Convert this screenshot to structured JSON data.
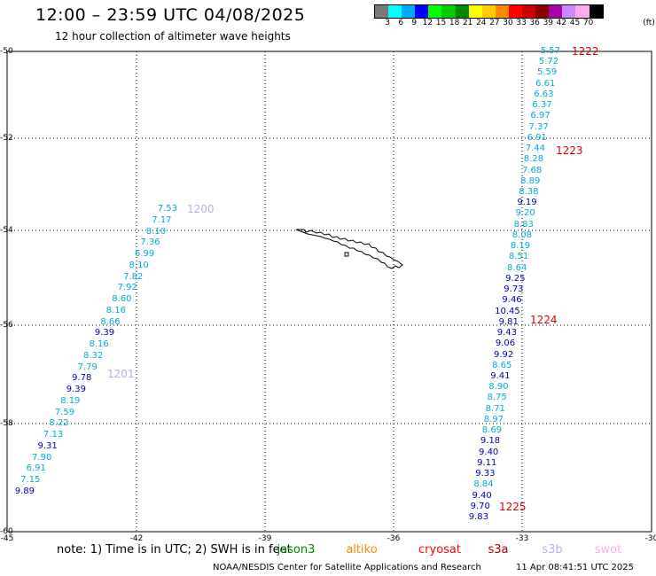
{
  "title": "12:00 – 23:59 UTC 04/08/2025",
  "subtitle": "12 hour collection of altimeter wave heights",
  "legend": {
    "colors": [
      "#7a7a7a",
      "#00ffff",
      "#00aaff",
      "#0000ff",
      "#00ff00",
      "#00cc00",
      "#008800",
      "#ffff00",
      "#ffcc00",
      "#ff8800",
      "#ff0000",
      "#cc0000",
      "#880000",
      "#aa00aa",
      "#cc88ff",
      "#ffaaee",
      "#000000"
    ],
    "ticks": [
      "3",
      "6",
      "9",
      "12",
      "15",
      "18",
      "21",
      "24",
      "27",
      "30",
      "33",
      "36",
      "39",
      "42",
      "45",
      "70"
    ],
    "unit": "(ft)"
  },
  "axes": {
    "lat_labels": [
      "-50",
      "-52",
      "-54",
      "-56",
      "-58",
      "-60"
    ],
    "lon_labels": [
      "-45",
      "-42",
      "-39",
      "-36",
      "-33",
      "-30"
    ]
  },
  "track_east": {
    "color_light": "#00aadd",
    "color_dark": "#0000aa",
    "values": [
      {
        "v": "5.57",
        "c": "light"
      },
      {
        "v": "5.72",
        "c": "light"
      },
      {
        "v": "5.59",
        "c": "light"
      },
      {
        "v": "6.61",
        "c": "light"
      },
      {
        "v": "6.63",
        "c": "light"
      },
      {
        "v": "6.37",
        "c": "light"
      },
      {
        "v": "6.97",
        "c": "light"
      },
      {
        "v": "7.37",
        "c": "light"
      },
      {
        "v": "6.91",
        "c": "light"
      },
      {
        "v": "7.44",
        "c": "light"
      },
      {
        "v": "8.28",
        "c": "light"
      },
      {
        "v": "7.68",
        "c": "light"
      },
      {
        "v": "8.89",
        "c": "light"
      },
      {
        "v": "8.38",
        "c": "light"
      },
      {
        "v": "9.19",
        "c": "dark"
      },
      {
        "v": "9.20",
        "c": "light"
      },
      {
        "v": "8.83",
        "c": "light"
      },
      {
        "v": "8.08",
        "c": "light"
      },
      {
        "v": "8.19",
        "c": "light"
      },
      {
        "v": "8.51",
        "c": "light"
      },
      {
        "v": "8.64",
        "c": "light"
      },
      {
        "v": "9.25",
        "c": "dark"
      },
      {
        "v": "9.73",
        "c": "dark"
      },
      {
        "v": "9.46",
        "c": "dark"
      },
      {
        "v": "10.45",
        "c": "dark"
      },
      {
        "v": "9.81",
        "c": "dark"
      },
      {
        "v": "9.43",
        "c": "dark"
      },
      {
        "v": "9.06",
        "c": "dark"
      },
      {
        "v": "9.92",
        "c": "dark"
      },
      {
        "v": "8.65",
        "c": "light"
      },
      {
        "v": "9.41",
        "c": "dark"
      },
      {
        "v": "8.90",
        "c": "light"
      },
      {
        "v": "8.75",
        "c": "light"
      },
      {
        "v": "8.71",
        "c": "light"
      },
      {
        "v": "8.97",
        "c": "light"
      },
      {
        "v": "8.69",
        "c": "light"
      },
      {
        "v": "9.18",
        "c": "dark"
      },
      {
        "v": "9.40",
        "c": "dark"
      },
      {
        "v": "9.11",
        "c": "dark"
      },
      {
        "v": "9.33",
        "c": "dark"
      },
      {
        "v": "8.84",
        "c": "light"
      },
      {
        "v": "9.40",
        "c": "dark"
      },
      {
        "v": "9.70",
        "c": "dark"
      },
      {
        "v": "9.83",
        "c": "dark"
      }
    ],
    "times": [
      "1222",
      "1223",
      "1224",
      "1225"
    ],
    "time_color": "#dd0000"
  },
  "track_west": {
    "values": [
      {
        "v": "7.53",
        "c": "light"
      },
      {
        "v": "7.17",
        "c": "light"
      },
      {
        "v": "8.10",
        "c": "light"
      },
      {
        "v": "7.36",
        "c": "light"
      },
      {
        "v": "6.99",
        "c": "light"
      },
      {
        "v": "8.10",
        "c": "light"
      },
      {
        "v": "7.82",
        "c": "light"
      },
      {
        "v": "7.92",
        "c": "light"
      },
      {
        "v": "8.60",
        "c": "light"
      },
      {
        "v": "8.16",
        "c": "light"
      },
      {
        "v": "8.66",
        "c": "light"
      },
      {
        "v": "9.39",
        "c": "dark"
      },
      {
        "v": "8.16",
        "c": "light"
      },
      {
        "v": "8.32",
        "c": "light"
      },
      {
        "v": "7.79",
        "c": "light"
      },
      {
        "v": "9.78",
        "c": "dark"
      },
      {
        "v": "9.39",
        "c": "dark"
      },
      {
        "v": "8.19",
        "c": "light"
      },
      {
        "v": "7.59",
        "c": "light"
      },
      {
        "v": "8.22",
        "c": "light"
      },
      {
        "v": "7.13",
        "c": "light"
      },
      {
        "v": "9.31",
        "c": "dark"
      },
      {
        "v": "7.90",
        "c": "light"
      },
      {
        "v": "6.91",
        "c": "light"
      },
      {
        "v": "7.15",
        "c": "light"
      },
      {
        "v": "9.89",
        "c": "dark"
      }
    ],
    "times": [
      "1200",
      "1201"
    ],
    "time_color": "#bbaaee"
  },
  "footer": {
    "note": "note:  1) Time is in UTC; 2) SWH is in feet",
    "satellites": [
      {
        "name": "jason3",
        "color": "#008800"
      },
      {
        "name": "altiko",
        "color": "#ff8800"
      },
      {
        "name": "cryosat",
        "color": "#ff0000"
      },
      {
        "name": "s3a",
        "color": "#aa0000"
      },
      {
        "name": "s3b",
        "color": "#bbaaee"
      },
      {
        "name": "swot",
        "color": "#ffaaee"
      }
    ],
    "credit": "NOAA/NESDIS Center for Satellite Applications and Research",
    "stamp": "11 Apr 08:41:51 UTC 2025"
  }
}
